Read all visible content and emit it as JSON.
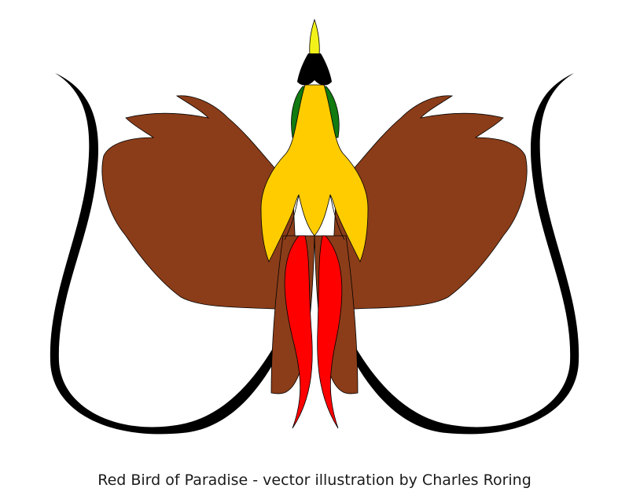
{
  "caption": "Red Bird of Paradise - vector illustration by Charles Roring",
  "palette": {
    "wing": "#8b3d19",
    "body": "#ffcc00",
    "neck": "#117a11",
    "plume": "#ff0000",
    "beak": "#f2f21a",
    "outline": "#000000",
    "background": "#ffffff"
  }
}
